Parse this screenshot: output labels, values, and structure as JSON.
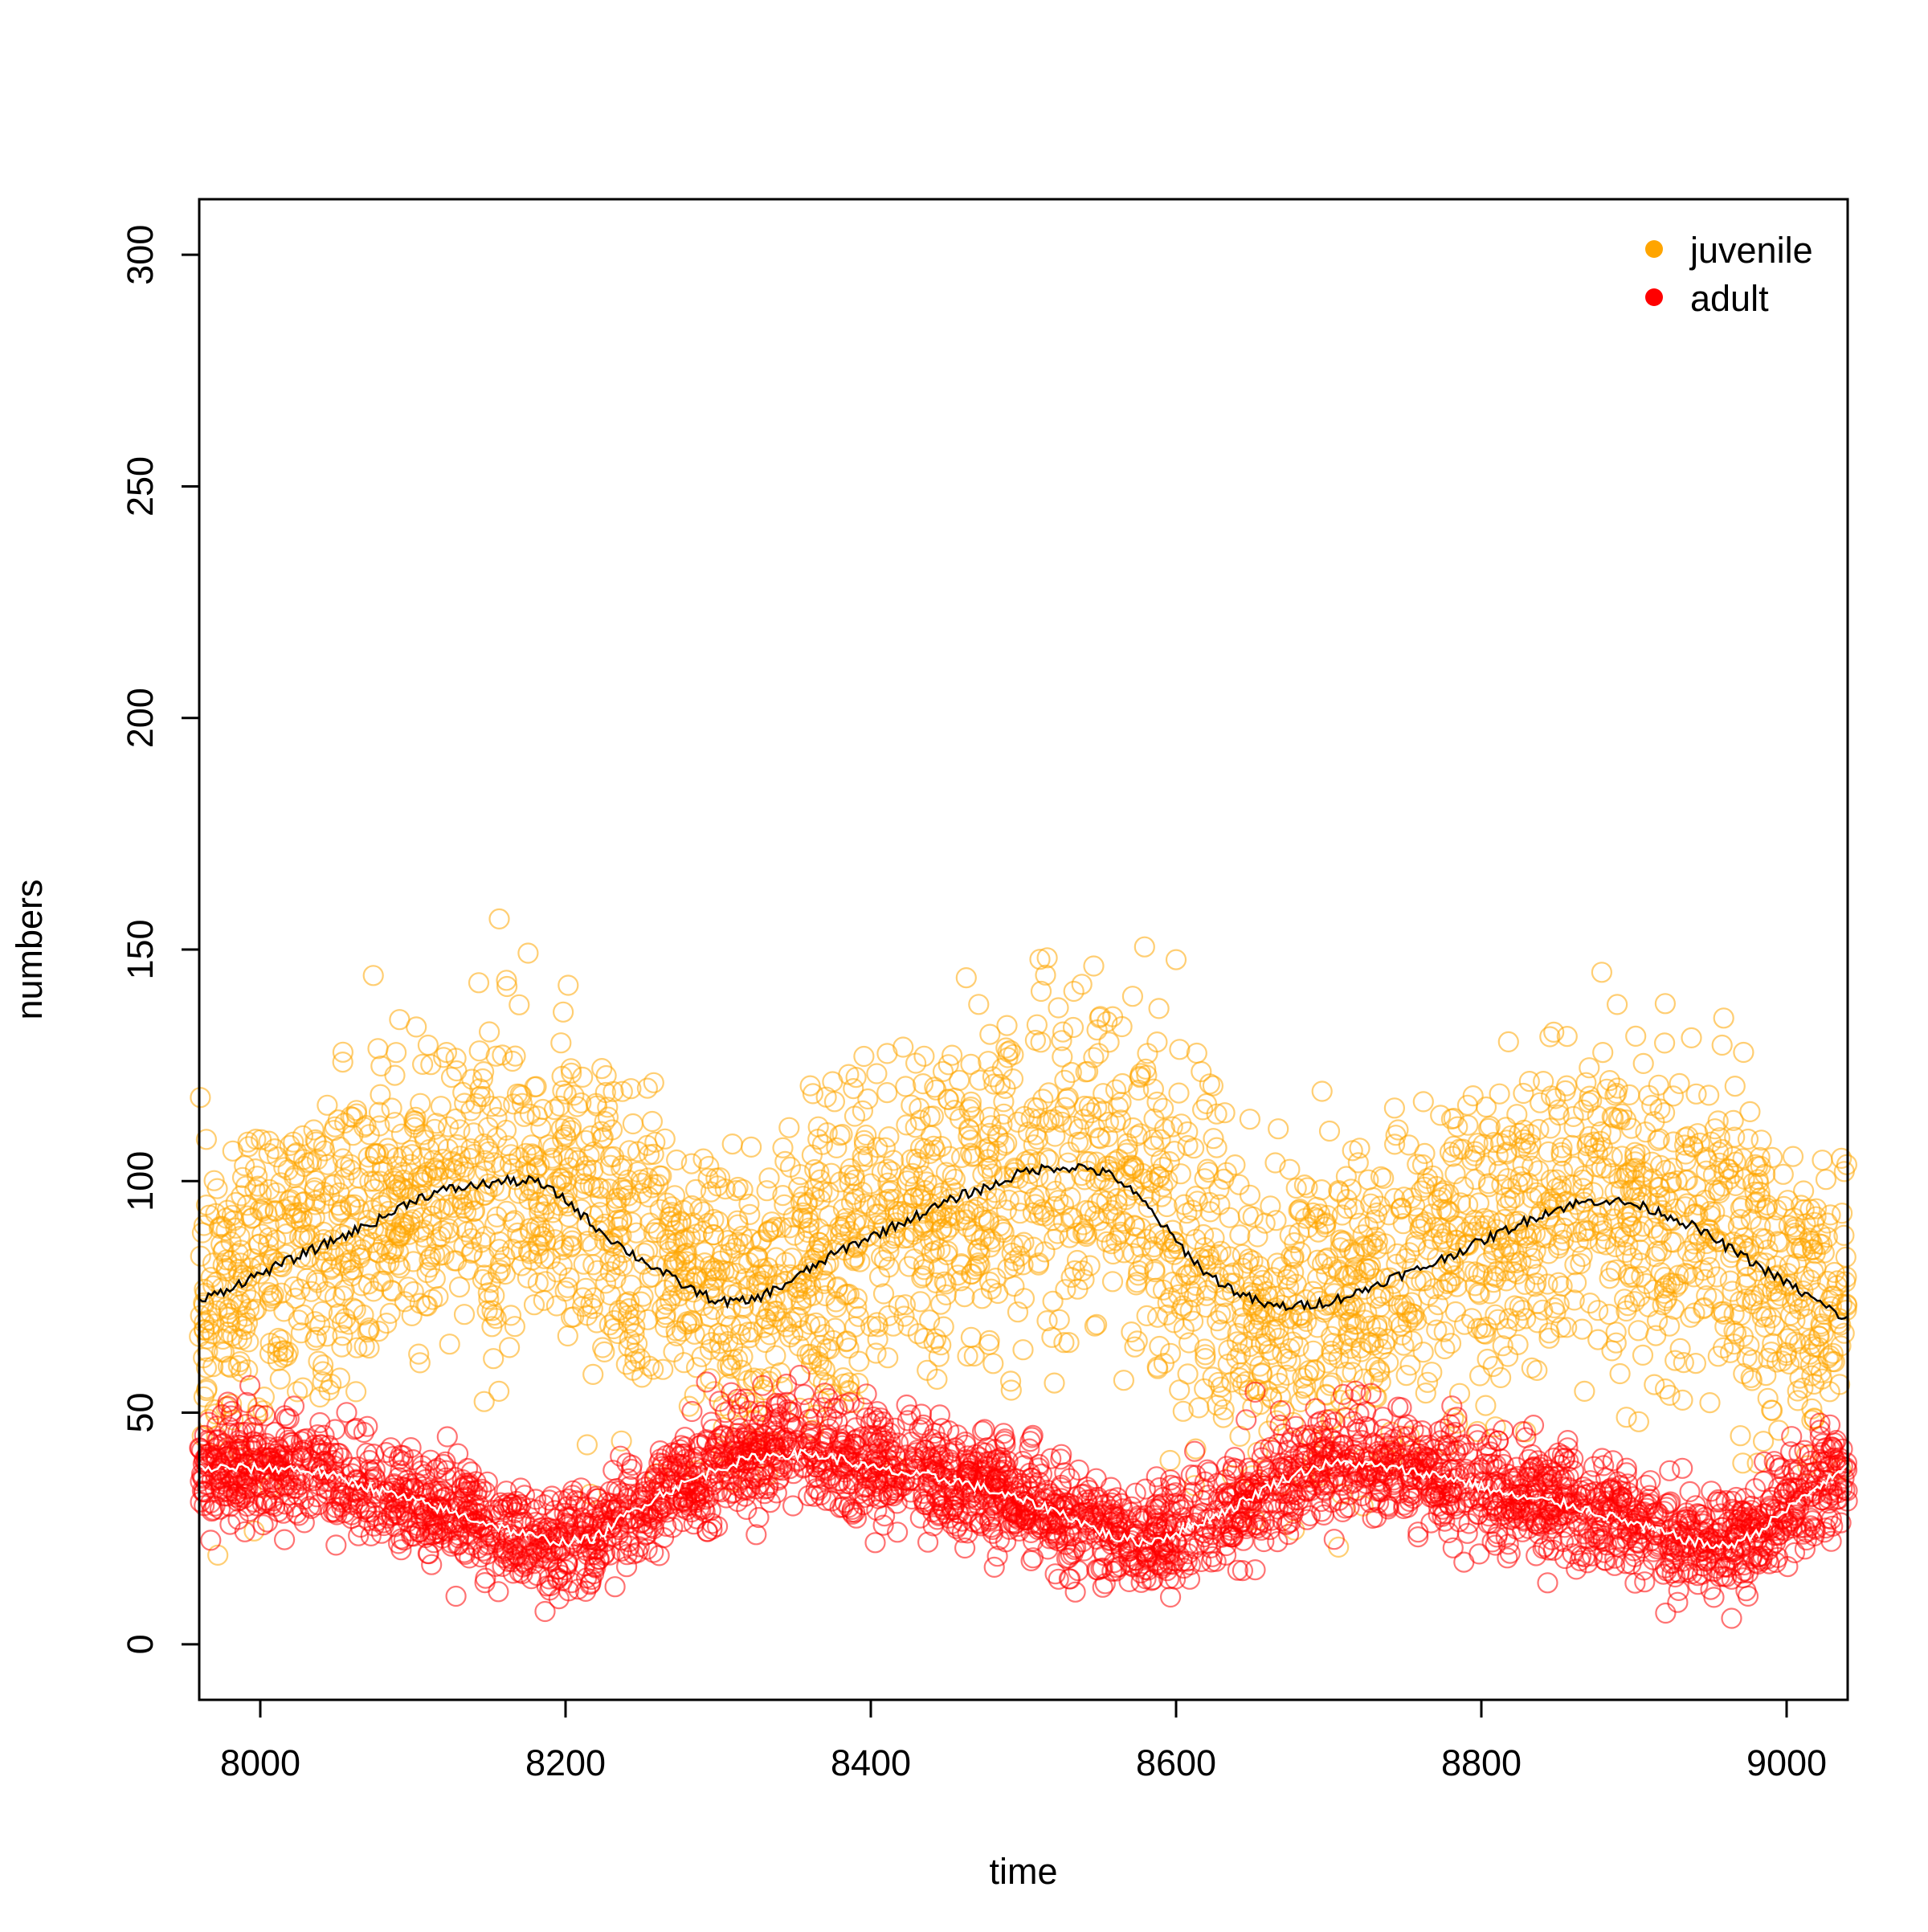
{
  "chart_data": {
    "type": "scatter",
    "title": "",
    "xlabel": "time",
    "ylabel": "numbers",
    "xlim": [
      7960,
      9040
    ],
    "ylim": [
      -12,
      312
    ],
    "xticks": [
      "8000",
      "8200",
      "8400",
      "8600",
      "8800",
      "9000"
    ],
    "yticks": [
      "0",
      "50",
      "100",
      "150",
      "200",
      "250",
      "300"
    ],
    "grid": false,
    "legend": {
      "position": "top-right"
    },
    "series": [
      {
        "name": "juvenile",
        "kind": "points",
        "color": "#FFA500",
        "marker": "open-circle",
        "mean_curve": {
          "x": [
            7960,
            7980,
            8000,
            8020,
            8040,
            8060,
            8080,
            8100,
            8120,
            8140,
            8160,
            8180,
            8200,
            8220,
            8240,
            8260,
            8280,
            8300,
            8320,
            8340,
            8360,
            8380,
            8400,
            8420,
            8440,
            8460,
            8480,
            8500,
            8520,
            8540,
            8560,
            8580,
            8600,
            8620,
            8640,
            8660,
            8680,
            8700,
            8720,
            8740,
            8760,
            8780,
            8800,
            8820,
            8840,
            8860,
            8880,
            8900,
            8920,
            8940,
            8960,
            8980,
            9000,
            9020,
            9040
          ],
          "y": [
            74,
            77,
            80,
            83,
            86,
            89,
            92,
            96,
            98,
            99,
            100,
            100,
            96,
            90,
            85,
            81,
            77,
            74,
            74,
            77,
            81,
            85,
            88,
            91,
            94,
            97,
            99,
            102,
            103,
            103,
            101,
            95,
            87,
            80,
            76,
            73,
            73,
            74,
            76,
            79,
            81,
            84,
            87,
            90,
            93,
            95,
            96,
            95,
            93,
            90,
            86,
            82,
            78,
            74,
            70
          ]
        },
        "spread": 18
      },
      {
        "name": "adult",
        "kind": "points",
        "color": "#FF0000",
        "marker": "open-circle",
        "mean_curve": {
          "x": [
            7960,
            7980,
            8000,
            8020,
            8040,
            8060,
            8080,
            8100,
            8120,
            8140,
            8160,
            8180,
            8200,
            8220,
            8240,
            8260,
            8280,
            8300,
            8320,
            8340,
            8360,
            8380,
            8400,
            8420,
            8440,
            8460,
            8480,
            8500,
            8520,
            8540,
            8560,
            8580,
            8600,
            8620,
            8640,
            8660,
            8680,
            8700,
            8720,
            8740,
            8760,
            8780,
            8800,
            8820,
            8840,
            8860,
            8880,
            8900,
            8920,
            8940,
            8960,
            8980,
            9000,
            9020,
            9040
          ],
          "y": [
            38,
            38,
            38,
            38,
            37,
            35,
            33,
            31,
            29,
            27,
            25,
            23,
            22,
            23,
            28,
            32,
            35,
            38,
            40,
            41,
            41,
            40,
            38,
            37,
            36,
            35,
            33,
            31,
            29,
            26,
            23,
            22,
            24,
            27,
            30,
            34,
            37,
            39,
            39,
            38,
            37,
            36,
            34,
            32,
            31,
            30,
            28,
            26,
            24,
            22,
            21,
            24,
            29,
            34,
            38
          ]
        },
        "spread": 8
      }
    ],
    "lines": [
      {
        "role": "juvenile-mean",
        "color": "#000000"
      },
      {
        "role": "adult-mean",
        "color": "#FFFFFF"
      }
    ]
  }
}
